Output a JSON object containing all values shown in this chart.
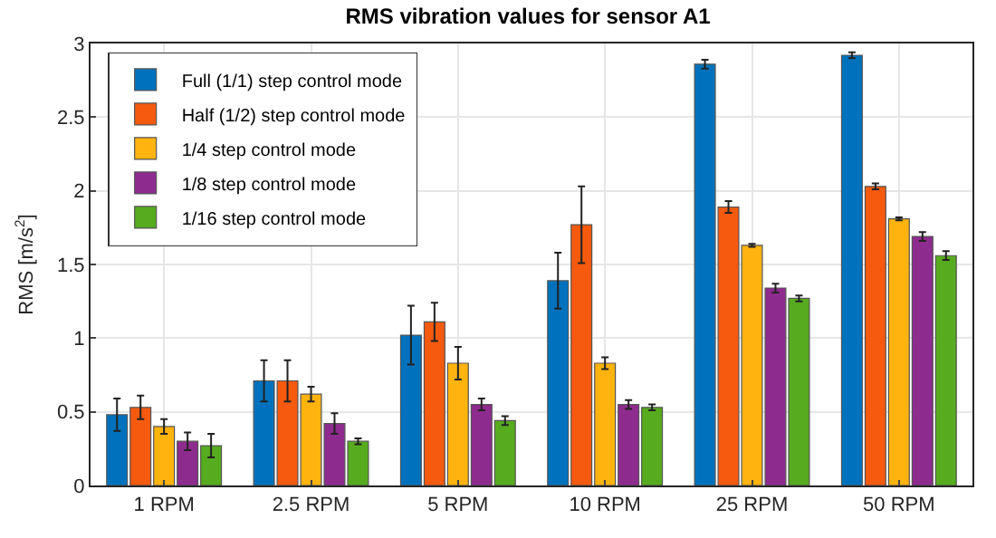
{
  "chart_data": {
    "type": "bar",
    "title": "RMS vibration values for sensor A1",
    "ylabel": "RMS [m/s$^{2}$]",
    "categories": [
      "1 RPM",
      "2.5 RPM",
      "5 RPM",
      "10 RPM",
      "25 RPM",
      "50 RPM"
    ],
    "series": [
      {
        "name": "Full (1/1) step control mode",
        "color": "#0072bd",
        "values": [
          0.48,
          0.71,
          1.02,
          1.39,
          2.86,
          2.92
        ],
        "errors": [
          0.11,
          0.14,
          0.2,
          0.19,
          0.03,
          0.02
        ]
      },
      {
        "name": "Half (1/2) step control mode",
        "color": "#f55a0f",
        "values": [
          0.53,
          0.71,
          1.11,
          1.77,
          1.89,
          2.03
        ],
        "errors": [
          0.08,
          0.14,
          0.13,
          0.26,
          0.04,
          0.02
        ]
      },
      {
        "name": "1/4 step control mode",
        "color": "#ffb30f",
        "values": [
          0.4,
          0.62,
          0.83,
          0.83,
          1.63,
          1.81
        ],
        "errors": [
          0.05,
          0.05,
          0.11,
          0.04,
          0.01,
          0.01
        ]
      },
      {
        "name": "1/8 step control mode",
        "color": "#8e2b8e",
        "values": [
          0.3,
          0.42,
          0.55,
          0.55,
          1.34,
          1.69
        ],
        "errors": [
          0.06,
          0.07,
          0.04,
          0.03,
          0.03,
          0.03
        ]
      },
      {
        "name": "1/16 step control mode",
        "color": "#57ab1e",
        "values": [
          0.27,
          0.3,
          0.44,
          0.53,
          1.27,
          1.56
        ],
        "errors": [
          0.08,
          0.02,
          0.03,
          0.02,
          0.02,
          0.03
        ]
      }
    ],
    "ylim": [
      0,
      3
    ],
    "yticks": [
      0,
      0.5,
      1,
      1.5,
      2,
      2.5,
      3
    ],
    "grid": true,
    "legend": "top left"
  }
}
